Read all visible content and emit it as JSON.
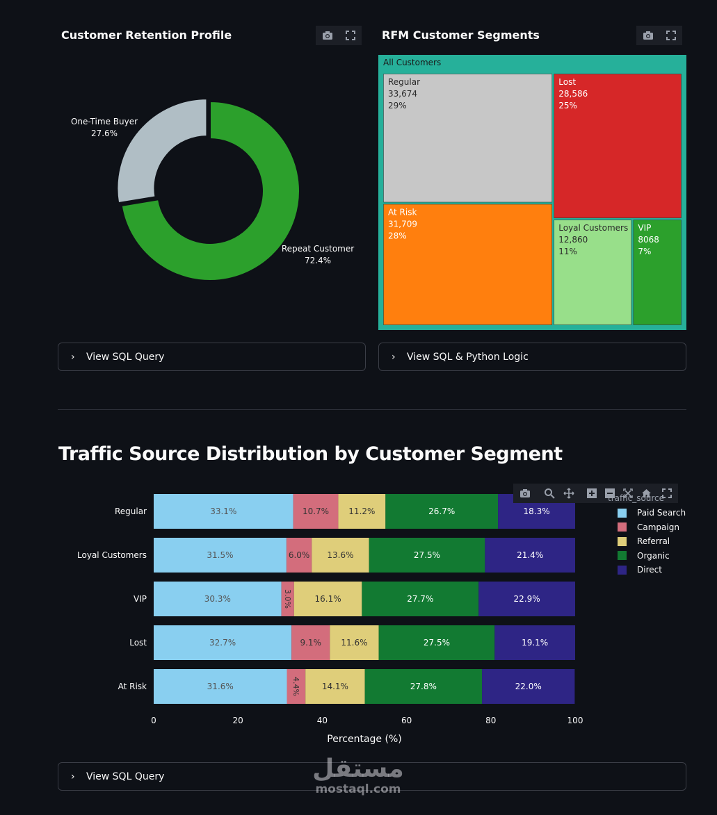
{
  "retention": {
    "title": "Customer Retention Profile",
    "chart_data": {
      "type": "pie",
      "hole": true,
      "slices": [
        {
          "label": "Repeat Customer",
          "value": 72.4,
          "text": "72.4%",
          "color": "#2ca02c"
        },
        {
          "label": "One-Time Buyer",
          "value": 27.6,
          "text": "27.6%",
          "color": "#b0bec5"
        }
      ]
    }
  },
  "rfm": {
    "title": "RFM Customer Segments",
    "chart_data": {
      "type": "treemap",
      "root": "All Customers",
      "segments": [
        {
          "label": "Regular",
          "count": "33,674",
          "pct": "29%",
          "value": 33674,
          "color": "#c7c7c7",
          "text_color": "#2a2a2a"
        },
        {
          "label": "Lost",
          "count": "28,586",
          "pct": "25%",
          "value": 28586,
          "color": "#d62728",
          "text_color": "#ffffff"
        },
        {
          "label": "At Risk",
          "count": "31,709",
          "pct": "28%",
          "value": 31709,
          "color": "#ff7f0e",
          "text_color": "#ffffff"
        },
        {
          "label": "Loyal Customers",
          "count": "12,860",
          "pct": "11%",
          "value": 12860,
          "color": "#98df8a",
          "text_color": "#2a2a2a"
        },
        {
          "label": "VIP",
          "count": "8068",
          "pct": "7%",
          "value": 8068,
          "color": "#2ca02c",
          "text_color": "#ffffff"
        }
      ],
      "root_color": "#26b09a"
    }
  },
  "expanders": {
    "sql_query": "View SQL Query",
    "sql_python": "View SQL & Python Logic",
    "sql_query_bottom": "View SQL Query"
  },
  "traffic": {
    "title": "Traffic Source Distribution by Customer Segment",
    "chart_data": {
      "type": "bar",
      "orientation": "horizontal",
      "stacked": true,
      "categories": [
        "Regular",
        "Loyal Customers",
        "VIP",
        "Lost",
        "At Risk"
      ],
      "series": [
        {
          "name": "Paid Search",
          "color": "#89cff0",
          "text_color": "#555555",
          "values": [
            33.1,
            31.5,
            30.3,
            32.7,
            31.6
          ]
        },
        {
          "name": "Campaign",
          "color": "#d36d7c",
          "text_color": "#333333",
          "values": [
            10.7,
            6.0,
            3.0,
            9.1,
            4.4
          ]
        },
        {
          "name": "Referral",
          "color": "#dfce7a",
          "text_color": "#333333",
          "values": [
            11.2,
            13.6,
            16.1,
            11.6,
            14.1
          ]
        },
        {
          "name": "Organic",
          "color": "#127a32",
          "text_color": "#ffffff",
          "values": [
            26.7,
            27.5,
            27.7,
            27.5,
            27.8
          ]
        },
        {
          "name": "Direct",
          "color": "#2e2585",
          "text_color": "#ffffff",
          "values": [
            18.3,
            21.4,
            22.9,
            19.1,
            22.0
          ]
        }
      ],
      "xlabel": "Percentage (%)",
      "xlim": [
        0,
        100
      ],
      "xticks": [
        0,
        20,
        40,
        60,
        80,
        100
      ],
      "legend_title": "traffic_source",
      "legend_position": "right"
    }
  },
  "watermark": {
    "arabic": "مستقل",
    "latin": "mostaql.com"
  }
}
